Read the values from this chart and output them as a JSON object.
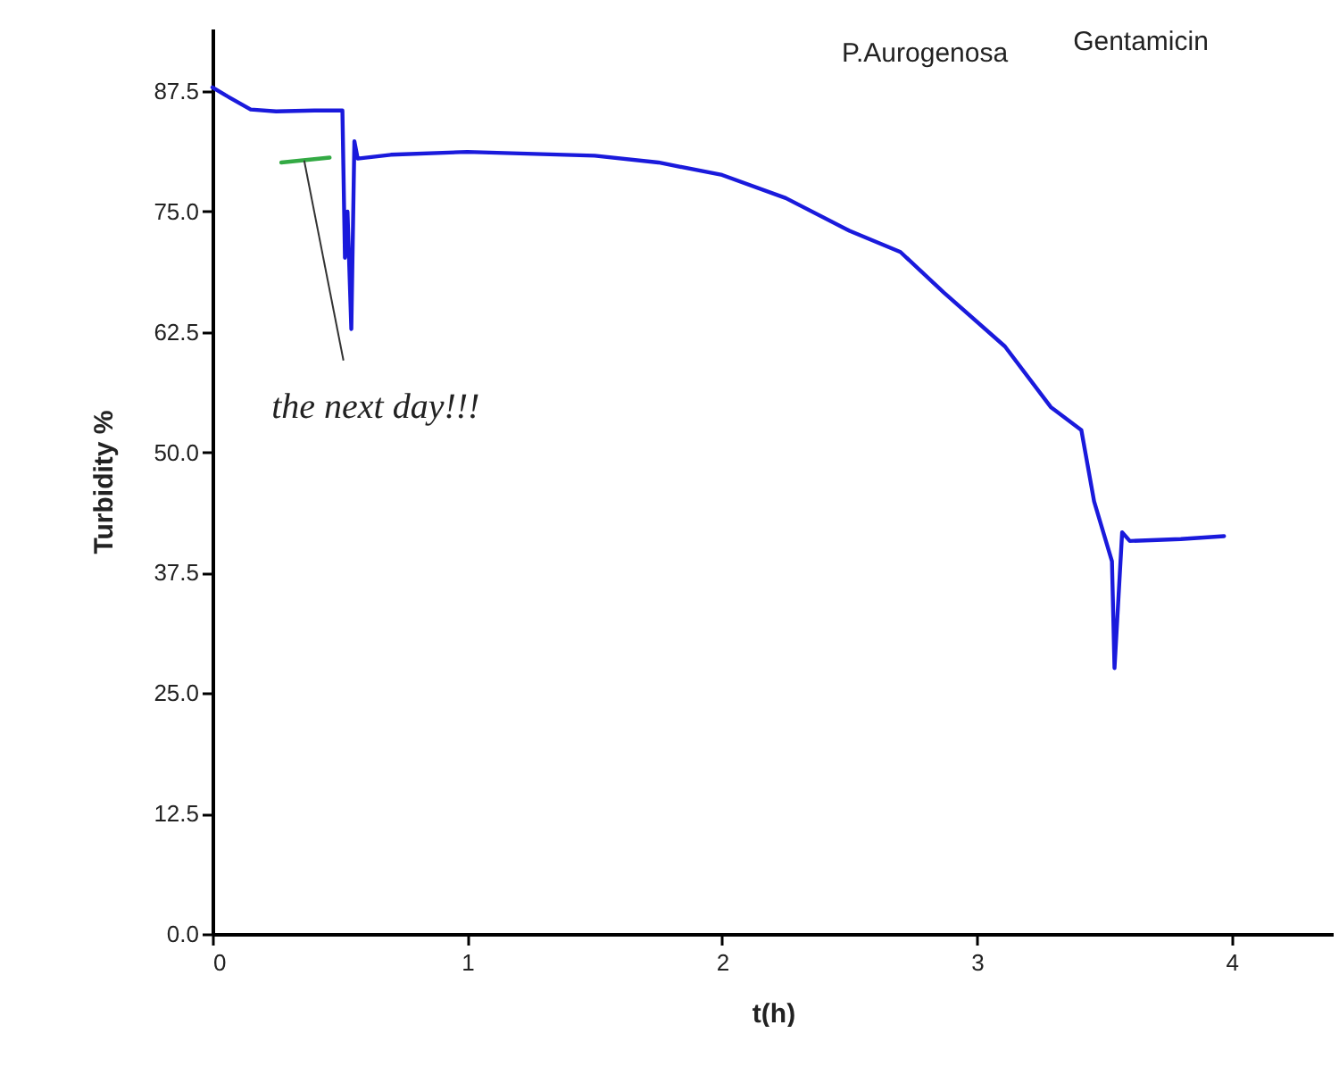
{
  "chart_data": {
    "type": "line",
    "title": "P.Aurogenosa",
    "xlabel": "t(h)",
    "ylabel": "Turbidity %",
    "xlim": [
      0,
      4.4
    ],
    "xticks": [
      0,
      1,
      2,
      3,
      4
    ],
    "ylim": [
      0,
      94
    ],
    "yticks": [
      {
        "value": 0,
        "label": "0.0"
      },
      12.5,
      {
        "value": 25,
        "label": "25.0"
      },
      37.5,
      {
        "value": 50,
        "label": "50.0"
      },
      62.5,
      {
        "value": 75,
        "label": "75.0"
      },
      87.5
    ],
    "grid": false,
    "marker": "none",
    "line_style": "solid",
    "series": [
      {
        "color": "#1a1adc",
        "x": [
          0,
          0.05,
          0.15,
          0.25,
          0.4,
          0.51,
          0.52,
          0.53,
          0.545,
          0.557,
          0.57,
          0.7,
          1.0,
          1.5,
          1.75,
          2.0,
          2.25,
          2.5,
          2.7,
          2.87,
          3.11,
          3.27,
          3.29,
          3.31,
          3.41,
          3.46,
          3.53,
          3.54,
          3.57,
          3.6,
          3.8,
          3.97
        ],
        "values": [
          87.9,
          87.1,
          85.6,
          85.4,
          85.5,
          85.5,
          70.2,
          75.0,
          62.8,
          82.3,
          80.5,
          80.9,
          81.2,
          80.8,
          80.1,
          78.8,
          76.4,
          73.0,
          70.8,
          66.6,
          61.0,
          55.4,
          54.7,
          54.3,
          52.3,
          44.9,
          38.7,
          27.6,
          41.7,
          40.8,
          41.0,
          41.3
        ]
      },
      {
        "color": "#33aa44",
        "x": [
          0.27,
          0.46
        ],
        "values": [
          80.1,
          80.6
        ]
      }
    ],
    "annotations": [
      {
        "text": "the next day!!!",
        "x": 0.36,
        "y": 80.3
      },
      "Gentamicin"
    ]
  }
}
